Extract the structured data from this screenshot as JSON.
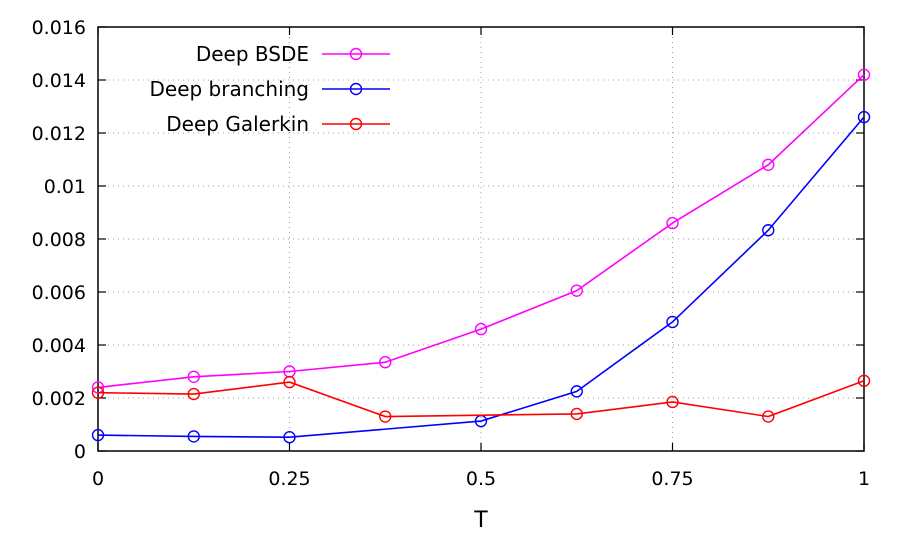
{
  "chart_data": {
    "type": "line",
    "xlabel": "T",
    "ylabel": "",
    "xlim": [
      0,
      1
    ],
    "ylim": [
      0,
      0.016
    ],
    "xticks": [
      0,
      0.25,
      0.5,
      0.75,
      1
    ],
    "xtick_labels": [
      "0",
      "0.25",
      "0.5",
      "0.75",
      "1"
    ],
    "yticks": [
      0,
      0.002,
      0.004,
      0.006,
      0.008,
      0.01,
      0.012,
      0.014,
      0.016
    ],
    "ytick_labels": [
      "0",
      "0.002",
      "0.004",
      "0.006",
      "0.008",
      "0.01",
      "0.012",
      "0.014",
      "0.016"
    ],
    "grid": true,
    "legend_position": "top-left",
    "x": [
      0,
      0.125,
      0.25,
      0.375,
      0.5,
      0.625,
      0.75,
      0.875,
      1
    ],
    "series": [
      {
        "name": "Deep BSDE",
        "color": "#ff00ff",
        "values": [
          0.0024,
          0.0028,
          0.003,
          0.00335,
          0.0046,
          0.00605,
          0.0086,
          0.0108,
          0.0142
        ]
      },
      {
        "name": "Deep branching",
        "color": "#0000ff",
        "values": [
          0.0006,
          0.00055,
          0.00052,
          null,
          0.00113,
          0.00225,
          0.00487,
          0.00833,
          0.0126
        ]
      },
      {
        "name": "Deep Galerkin",
        "color": "#ff0000",
        "values": [
          0.0022,
          0.00215,
          0.0026,
          0.0013,
          null,
          0.0014,
          0.00185,
          0.0013,
          0.00265
        ]
      }
    ]
  }
}
